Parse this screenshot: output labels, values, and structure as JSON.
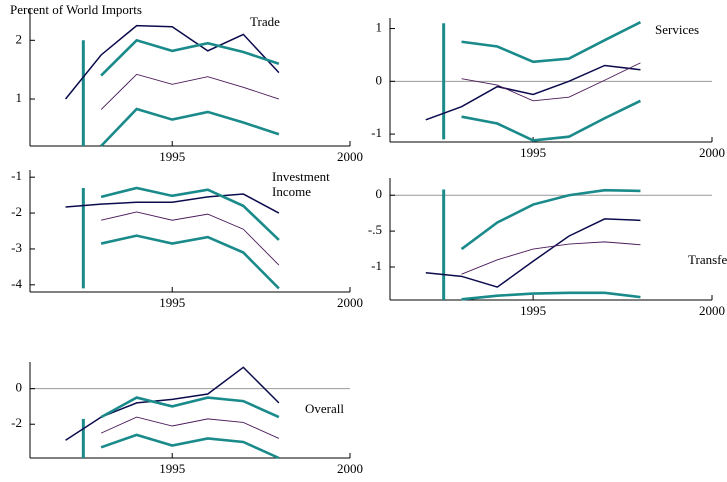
{
  "chart_data": [
    {
      "type": "line",
      "title": "Trade",
      "ylabel": "Percent of World Imports",
      "x": [
        1992,
        1993,
        1994,
        1995,
        1996,
        1997,
        1998
      ],
      "xlim": [
        1991,
        2000
      ],
      "xticks": [
        1995,
        2000
      ],
      "ylim": [
        0.2,
        2.55
      ],
      "yticks": [
        1,
        2
      ],
      "zero_line": false,
      "forecast_marker": {
        "x": 1992.5,
        "y": [
          0.2,
          2.0
        ]
      },
      "series": [
        {
          "color": "#0b0b4d",
          "values": [
            1.0,
            1.75,
            2.25,
            2.23,
            1.82,
            2.1,
            1.45
          ]
        },
        {
          "color": "#1a8a8a",
          "values": [
            null,
            1.4,
            2.0,
            1.82,
            1.95,
            1.8,
            1.6
          ]
        },
        {
          "color": "#4b1a5a",
          "values": [
            null,
            0.82,
            1.42,
            1.25,
            1.38,
            1.2,
            1.0
          ]
        },
        {
          "color": "#1a8a8a",
          "values": [
            null,
            0.2,
            0.83,
            0.65,
            0.78,
            0.6,
            0.4
          ]
        }
      ]
    },
    {
      "type": "line",
      "title": "Services",
      "x": [
        1992,
        1993,
        1994,
        1995,
        1996,
        1997,
        1998
      ],
      "xlim": [
        1991,
        2000
      ],
      "xticks": [
        1995,
        2000
      ],
      "ylim": [
        -1.15,
        1.2
      ],
      "yticks": [
        -1,
        0,
        1
      ],
      "zero_line": true,
      "forecast_marker": {
        "x": 1992.5,
        "y": [
          -1.1,
          1.1
        ]
      },
      "series": [
        {
          "color": "#0b0b4d",
          "values": [
            -0.73,
            -0.48,
            -0.1,
            -0.25,
            0.0,
            0.3,
            0.22
          ]
        },
        {
          "color": "#1a8a8a",
          "values": [
            null,
            0.75,
            0.66,
            0.37,
            0.43,
            0.78,
            1.12
          ]
        },
        {
          "color": "#4b1a5a",
          "values": [
            null,
            0.05,
            -0.07,
            -0.37,
            -0.3,
            0.02,
            0.35
          ]
        },
        {
          "color": "#1a8a8a",
          "values": [
            null,
            -0.67,
            -0.8,
            -1.12,
            -1.05,
            -0.7,
            -0.37
          ]
        }
      ]
    },
    {
      "type": "line",
      "title": "Investment Income",
      "x": [
        1992,
        1993,
        1994,
        1995,
        1996,
        1997,
        1998
      ],
      "xlim": [
        1991,
        2000
      ],
      "xticks": [
        1995,
        2000
      ],
      "ylim": [
        -4.2,
        -0.8
      ],
      "yticks": [
        -4,
        -3,
        -2,
        -1
      ],
      "zero_line": false,
      "forecast_marker": {
        "x": 1992.5,
        "y": [
          -4.1,
          -1.3
        ]
      },
      "series": [
        {
          "color": "#0b0b4d",
          "values": [
            -1.83,
            -1.75,
            -1.7,
            -1.7,
            -1.55,
            -1.47,
            -2.0
          ]
        },
        {
          "color": "#1a8a8a",
          "values": [
            null,
            -1.55,
            -1.3,
            -1.52,
            -1.35,
            -1.8,
            -2.75
          ]
        },
        {
          "color": "#4b1a5a",
          "values": [
            null,
            -2.2,
            -1.97,
            -2.2,
            -2.03,
            -2.45,
            -3.45
          ]
        },
        {
          "color": "#1a8a8a",
          "values": [
            null,
            -2.85,
            -2.63,
            -2.85,
            -2.67,
            -3.1,
            -4.1
          ]
        }
      ]
    },
    {
      "type": "line",
      "title": "Transfers",
      "x": [
        1992,
        1993,
        1994,
        1995,
        1996,
        1997,
        1998
      ],
      "xlim": [
        1991,
        2000
      ],
      "xticks": [
        1995,
        2000
      ],
      "ylim": [
        -1.46,
        0.24
      ],
      "yticks": [
        {
          "value": -1,
          "label": "-1"
        },
        {
          "value": -0.5,
          "label": "-.5"
        },
        0
      ],
      "zero_line": true,
      "forecast_marker": {
        "x": 1992.5,
        "y": [
          -1.46,
          0.08
        ]
      },
      "series": [
        {
          "color": "#0b0b4d",
          "values": [
            -1.08,
            -1.13,
            -1.28,
            -0.92,
            -0.57,
            -0.33,
            -0.35
          ]
        },
        {
          "color": "#1a8a8a",
          "values": [
            null,
            -0.75,
            -0.38,
            -0.13,
            0.0,
            0.07,
            0.06
          ]
        },
        {
          "color": "#4b1a5a",
          "values": [
            null,
            -1.1,
            -0.9,
            -0.75,
            -0.68,
            -0.65,
            -0.69
          ]
        },
        {
          "color": "#1a8a8a",
          "values": [
            null,
            -1.45,
            -1.4,
            -1.37,
            -1.36,
            -1.36,
            -1.42
          ]
        }
      ]
    },
    {
      "type": "line",
      "title": "Overall",
      "x": [
        1992,
        1993,
        1994,
        1995,
        1996,
        1997,
        1998
      ],
      "xlim": [
        1991,
        2000
      ],
      "xticks": [
        1995,
        2000
      ],
      "ylim": [
        -3.9,
        1.5
      ],
      "yticks": [
        -2,
        0
      ],
      "zero_line": true,
      "forecast_marker": {
        "x": 1992.5,
        "y": [
          -3.9,
          -1.7
        ]
      },
      "series": [
        {
          "color": "#0b0b4d",
          "values": [
            -2.9,
            -1.6,
            -0.8,
            -0.6,
            -0.3,
            1.2,
            -0.8
          ]
        },
        {
          "color": "#1a8a8a",
          "values": [
            null,
            -1.6,
            -0.5,
            -1.0,
            -0.5,
            -0.7,
            -1.6
          ]
        },
        {
          "color": "#4b1a5a",
          "values": [
            null,
            -2.5,
            -1.6,
            -2.1,
            -1.7,
            -1.9,
            -2.8
          ]
        },
        {
          "color": "#1a8a8a",
          "values": [
            null,
            -3.3,
            -2.6,
            -3.2,
            -2.8,
            -3.0,
            -3.9
          ]
        }
      ]
    }
  ]
}
